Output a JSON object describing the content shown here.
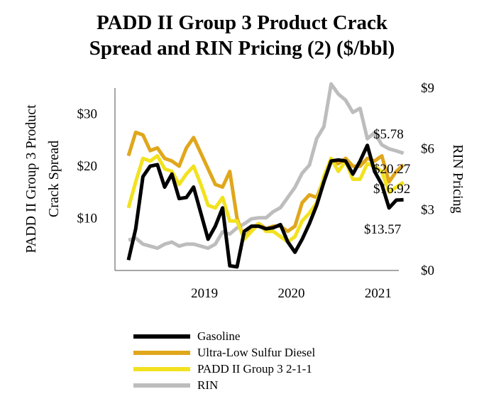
{
  "title_line1": "PADD II Group 3 Product Crack",
  "title_line2": "Spread and RIN Pricing (2) ($/bbl)",
  "chart_data": {
    "type": "line",
    "title": "PADD II Group 3 Product Crack Spread and RIN Pricing (2) ($/bbl)",
    "x_start": "2018-08",
    "x_step": "month",
    "x_tick_labels": [
      "2019",
      "2020",
      "2021"
    ],
    "x_tick_positions": [
      10.5,
      22.5,
      34.5
    ],
    "left_axis": {
      "label_line1": "PADD II Group 3 Product",
      "label_line2": "Crack Spread",
      "ylim": [
        0,
        35
      ],
      "ticks": [
        10,
        20,
        30
      ],
      "tick_labels": [
        "$10",
        "$20",
        "$30"
      ]
    },
    "right_axis": {
      "label": "RIN Pricing",
      "ylim": [
        0,
        9
      ],
      "ticks": [
        0,
        3,
        6,
        9
      ],
      "tick_labels": [
        "$0",
        "$3",
        "$6",
        "$9"
      ]
    },
    "series": [
      {
        "name": "Gasoline",
        "axis": "left",
        "color": "#000000",
        "values": [
          2,
          8,
          18,
          20,
          20.3,
          16,
          18.5,
          13.8,
          14,
          16,
          11,
          6,
          8.5,
          12,
          0.9,
          0.7,
          7.5,
          8.5,
          8.5,
          8,
          8.2,
          8.8,
          5.5,
          3.5,
          6,
          9,
          12.5,
          17,
          21,
          21.2,
          21,
          18.5,
          21,
          24,
          19,
          16.5,
          12,
          13.5,
          13.57
        ]
      },
      {
        "name": "Ultra-Low Sulfur Diesel",
        "axis": "left",
        "color": "#E0A71C",
        "values": [
          22,
          26.5,
          26,
          23,
          23.5,
          21.5,
          21,
          20,
          23.5,
          25.5,
          22.5,
          19.5,
          16.5,
          16,
          19,
          10,
          6,
          8,
          9,
          8,
          8.5,
          8.5,
          7.5,
          8.5,
          13,
          14.5,
          14,
          17.5,
          21,
          20.5,
          21.5,
          20,
          20,
          21.5,
          21,
          22,
          17,
          19,
          20.27
        ]
      },
      {
        "name": "PADD II Group 3 2-1-1",
        "axis": "left",
        "color": "#F2E21F",
        "values": [
          12,
          17,
          21.5,
          21,
          22,
          19.5,
          19,
          16.5,
          18.5,
          20,
          16.5,
          12.5,
          12,
          14,
          9.5,
          9.5,
          6,
          7.5,
          9,
          7.5,
          7.5,
          6.5,
          5.5,
          6.5,
          9.5,
          11,
          13,
          18,
          21.5,
          19,
          21,
          17.5,
          17.5,
          20.5,
          20,
          19,
          15,
          16,
          16.92
        ]
      },
      {
        "name": "RIN",
        "axis": "right",
        "color": "#BDBDBD",
        "values": [
          1.5,
          1.6,
          1.3,
          1.2,
          1.1,
          1.3,
          1.4,
          1.2,
          1.3,
          1.3,
          1.2,
          1.1,
          1.3,
          1.9,
          1.8,
          2.1,
          2.3,
          2.55,
          2.6,
          2.6,
          2.9,
          3.1,
          3.6,
          4.1,
          4.8,
          5.2,
          6.5,
          7.1,
          9.2,
          8.7,
          8.4,
          7.8,
          8.0,
          6.5,
          6.8,
          6.2,
          6.0,
          5.9,
          5.78
        ]
      }
    ],
    "end_labels": [
      "$20.27",
      "$16.92",
      "$5.78",
      "$13.57"
    ]
  }
}
